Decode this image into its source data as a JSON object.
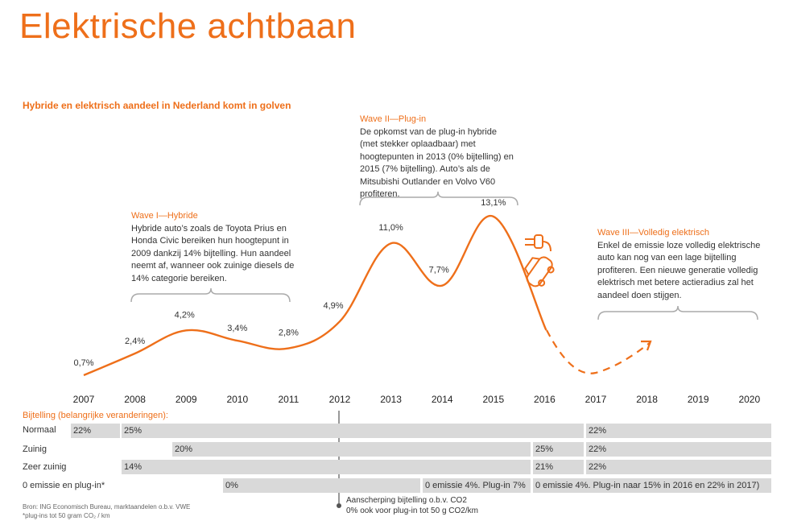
{
  "title": "Elektrische achtbaan",
  "subtitle": "Hybride en elektrisch aandeel in Nederland komt in golven",
  "waves": [
    {
      "title": "Wave I—Hybride",
      "text": "Hybride auto’s zoals de Toyota Prius en Honda Civic bereiken hun hoogtepunt in 2009 dankzij 14% bijtelling. Hun aandeel neemt af, wanneer ook zuinige diesels de 14% categorie bereiken."
    },
    {
      "title": "Wave II—Plug-in",
      "text": "De opkomst van de plug-in hybride (met stekker oplaadbaar) met hoogtepunten in 2013 (0% bijtelling) en 2015 (7% bijtelling). Auto’s als de Mitsubishi Outlander en Volvo V60 profiteren."
    },
    {
      "title": "Wave III—Volledig elektrisch",
      "text": "Enkel de emissie loze volledig elektrische auto kan nog van een lage bijtelling profiteren. Een nieuwe generatie volledig elektrisch met betere actieradius zal het aandeel doen stijgen."
    }
  ],
  "chart_data": {
    "type": "line",
    "x": [
      "2007",
      "2008",
      "2009",
      "2010",
      "2011",
      "2012",
      "2013",
      "2014",
      "2015",
      "2016",
      "2017",
      "2018",
      "2019",
      "2020"
    ],
    "values": [
      0.7,
      2.4,
      4.2,
      3.4,
      2.8,
      4.9,
      11.0,
      7.7,
      13.1,
      null,
      null,
      null,
      null,
      null
    ],
    "labels": [
      "0,7%",
      "2,4%",
      "4,2%",
      "3,4%",
      "2,8%",
      "4,9%",
      "11,0%",
      "7,7%",
      "13,1%"
    ],
    "projection": "dashed line dipping after 2016 then rising toward 2018",
    "color": "#ee6f1a",
    "grid": false,
    "legend": "none"
  },
  "bijtelling": {
    "heading": "Bijtelling (belangrijke veranderingen):",
    "rows": [
      {
        "label": "Normaal",
        "bars": [
          "22%",
          "25%",
          "22%"
        ]
      },
      {
        "label": "Zuinig",
        "bars": [
          "20%",
          "25%",
          "22%"
        ]
      },
      {
        "label": "Zeer zuinig",
        "bars": [
          "14%",
          "21%",
          "22%"
        ]
      },
      {
        "label": "0 emissie en plug-in*",
        "bars": [
          "0%",
          "0 emissie 4%. Plug-in 7%",
          "0 emissie 4%. Plug-in naar 15% in 2016 en 22% in 2017)"
        ]
      }
    ]
  },
  "note": [
    "Aanscherping bijtelling o.b.v. CO2",
    "0% ook voor plug-in tot 50 g CO2/km"
  ],
  "source": [
    "Bron: ING Economisch Bureau, marktaandelen o.b.v. VWE",
    "*plug-ins tot 50 gram CO₂ / km"
  ],
  "colors": {
    "accent": "#ee6f1a",
    "bar": "#d9d9d9"
  },
  "icons": [
    "plug-icon",
    "car-icon"
  ]
}
